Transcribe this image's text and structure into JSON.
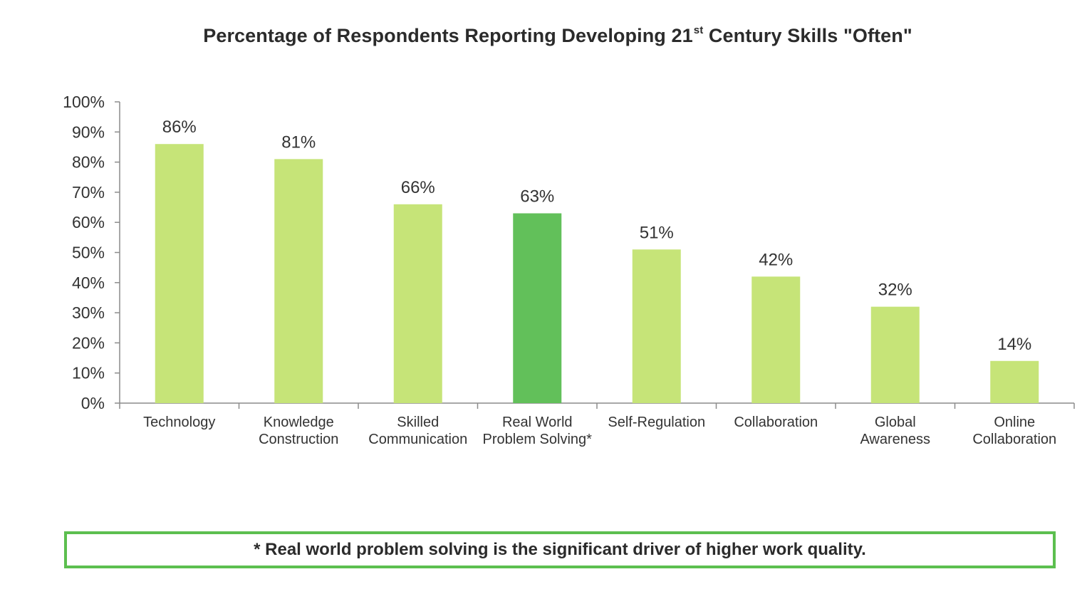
{
  "chart_data": {
    "type": "bar",
    "title": "Percentage of Respondents Reporting Developing 21",
    "title_superscript": "st",
    "title_suffix": " Century Skills \"Often\"",
    "categories": [
      [
        "Technology"
      ],
      [
        "Knowledge",
        "Construction"
      ],
      [
        "Skilled",
        "Communication"
      ],
      [
        "Real World",
        "Problem Solving*"
      ],
      [
        "Self-Regulation"
      ],
      [
        "Collaboration"
      ],
      [
        "Global",
        "Awareness"
      ],
      [
        "Online",
        "Collaboration"
      ]
    ],
    "values": [
      86,
      81,
      66,
      63,
      51,
      42,
      32,
      14
    ],
    "data_labels": [
      "86%",
      "81%",
      "66%",
      "63%",
      "51%",
      "42%",
      "32%",
      "14%"
    ],
    "highlight_index": 3,
    "ylim": [
      0,
      100
    ],
    "yticks": [
      "0%",
      "10%",
      "20%",
      "30%",
      "40%",
      "50%",
      "60%",
      "70%",
      "80%",
      "90%",
      "100%"
    ],
    "xlabel": "",
    "ylabel": "",
    "grid": false,
    "legend": "none",
    "colors": {
      "bar": "#c6e478",
      "highlight": "#62c05a",
      "axis": "#8c8c8c",
      "text": "#333333"
    }
  },
  "footnote": "* Real world problem solving is the significant driver of higher work quality.",
  "footnote_border_color": "#5cbf4f"
}
